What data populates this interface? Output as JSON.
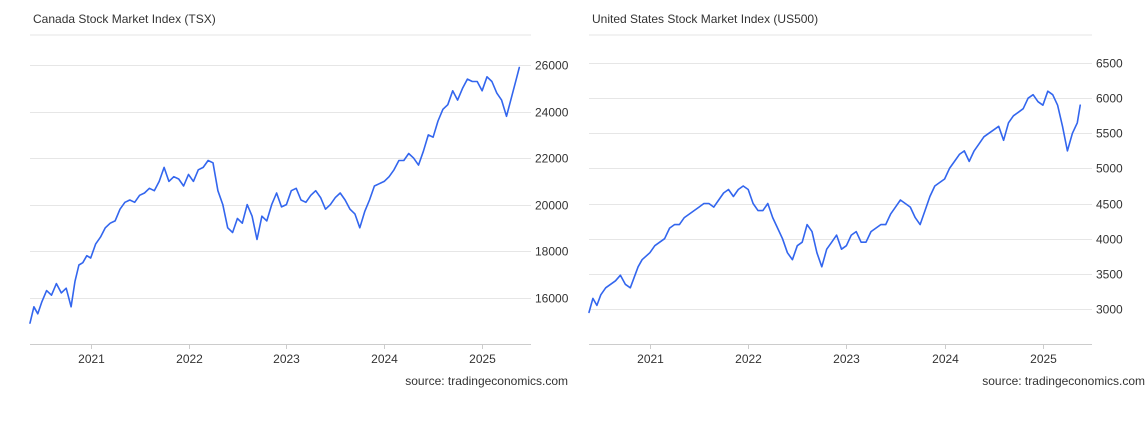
{
  "chart_data": [
    {
      "type": "line",
      "title": "Canada Stock Market Index (TSX)",
      "source": "source: tradingeconomics.com",
      "color": "#3366ee",
      "xlabel": "",
      "ylabel": "",
      "x_ticks": [
        "2021",
        "2022",
        "2023",
        "2024",
        "2025"
      ],
      "y_ticks": [
        "16000",
        "18000",
        "20000",
        "22000",
        "24000",
        "26000"
      ],
      "y_tick_values": [
        16000,
        18000,
        20000,
        22000,
        24000,
        26000
      ],
      "xlim": [
        2020.38,
        2025.5
      ],
      "ylim": [
        14000,
        27300
      ],
      "grid": "horizontal",
      "series": [
        {
          "x": [
            2020.38,
            2020.42,
            2020.46,
            2020.5,
            2020.55,
            2020.6,
            2020.65,
            2020.7,
            2020.75,
            2020.8,
            2020.84,
            2020.88,
            2020.92,
            2020.96,
            2021.0,
            2021.05,
            2021.1,
            2021.15,
            2021.2,
            2021.25,
            2021.3,
            2021.35,
            2021.4,
            2021.45,
            2021.5,
            2021.55,
            2021.6,
            2021.65,
            2021.7,
            2021.75,
            2021.8,
            2021.85,
            2021.9,
            2021.95,
            2022.0,
            2022.05,
            2022.1,
            2022.15,
            2022.2,
            2022.25,
            2022.3,
            2022.35,
            2022.4,
            2022.45,
            2022.5,
            2022.55,
            2022.6,
            2022.65,
            2022.7,
            2022.75,
            2022.8,
            2022.85,
            2022.9,
            2022.95,
            2023.0,
            2023.05,
            2023.1,
            2023.15,
            2023.2,
            2023.25,
            2023.3,
            2023.35,
            2023.4,
            2023.45,
            2023.5,
            2023.55,
            2023.6,
            2023.65,
            2023.7,
            2023.75,
            2023.8,
            2023.85,
            2023.9,
            2023.95,
            2024.0,
            2024.05,
            2024.1,
            2024.15,
            2024.2,
            2024.25,
            2024.3,
            2024.35,
            2024.4,
            2024.45,
            2024.5,
            2024.55,
            2024.6,
            2024.65,
            2024.7,
            2024.75,
            2024.8,
            2024.85,
            2024.9,
            2024.95,
            2025.0,
            2025.05,
            2025.1,
            2025.15,
            2025.2,
            2025.25,
            2025.3,
            2025.35,
            2025.38
          ],
          "y": [
            14900,
            15600,
            15300,
            15800,
            16300,
            16100,
            16600,
            16200,
            16400,
            15600,
            16700,
            17400,
            17500,
            17800,
            17700,
            18300,
            18600,
            19000,
            19200,
            19300,
            19800,
            20100,
            20200,
            20100,
            20400,
            20500,
            20700,
            20600,
            21000,
            21600,
            21000,
            21200,
            21100,
            20800,
            21300,
            21000,
            21500,
            21600,
            21900,
            21800,
            20600,
            20000,
            19000,
            18800,
            19400,
            19200,
            20000,
            19500,
            18500,
            19500,
            19300,
            20000,
            20500,
            19900,
            20000,
            20600,
            20700,
            20200,
            20100,
            20400,
            20600,
            20300,
            19800,
            20000,
            20300,
            20500,
            20200,
            19800,
            19600,
            19000,
            19700,
            20200,
            20800,
            20900,
            21000,
            21200,
            21500,
            21900,
            21900,
            22200,
            22000,
            21700,
            22300,
            23000,
            22900,
            23600,
            24100,
            24300,
            24900,
            24500,
            25000,
            25400,
            25300,
            25300,
            24900,
            25500,
            25300,
            24800,
            24500,
            23800,
            24600,
            25400,
            25900
          ]
        }
      ]
    },
    {
      "type": "line",
      "title": "United States Stock Market Index (US500)",
      "source": "source: tradingeconomics.com",
      "color": "#3366ee",
      "xlabel": "",
      "ylabel": "",
      "x_ticks": [
        "2021",
        "2022",
        "2023",
        "2024",
        "2025"
      ],
      "y_ticks": [
        "3000",
        "3500",
        "4000",
        "4500",
        "5000",
        "5500",
        "6000",
        "6500"
      ],
      "y_tick_values": [
        3000,
        3500,
        4000,
        4500,
        5000,
        5500,
        6000,
        6500
      ],
      "xlim": [
        2020.38,
        2025.5
      ],
      "ylim": [
        2500,
        6900
      ],
      "grid": "horizontal",
      "series": [
        {
          "x": [
            2020.38,
            2020.42,
            2020.46,
            2020.5,
            2020.55,
            2020.6,
            2020.65,
            2020.7,
            2020.75,
            2020.8,
            2020.84,
            2020.88,
            2020.92,
            2020.96,
            2021.0,
            2021.05,
            2021.1,
            2021.15,
            2021.2,
            2021.25,
            2021.3,
            2021.35,
            2021.4,
            2021.45,
            2021.5,
            2021.55,
            2021.6,
            2021.65,
            2021.7,
            2021.75,
            2021.8,
            2021.85,
            2021.9,
            2021.95,
            2022.0,
            2022.05,
            2022.1,
            2022.15,
            2022.2,
            2022.25,
            2022.3,
            2022.35,
            2022.4,
            2022.45,
            2022.5,
            2022.55,
            2022.6,
            2022.65,
            2022.7,
            2022.75,
            2022.8,
            2022.85,
            2022.9,
            2022.95,
            2023.0,
            2023.05,
            2023.1,
            2023.15,
            2023.2,
            2023.25,
            2023.3,
            2023.35,
            2023.4,
            2023.45,
            2023.5,
            2023.55,
            2023.6,
            2023.65,
            2023.7,
            2023.75,
            2023.8,
            2023.85,
            2023.9,
            2023.95,
            2024.0,
            2024.05,
            2024.1,
            2024.15,
            2024.2,
            2024.25,
            2024.3,
            2024.35,
            2024.4,
            2024.45,
            2024.5,
            2024.55,
            2024.6,
            2024.65,
            2024.7,
            2024.75,
            2024.8,
            2024.85,
            2024.9,
            2024.95,
            2025.0,
            2025.05,
            2025.1,
            2025.15,
            2025.2,
            2025.25,
            2025.3,
            2025.35,
            2025.38
          ],
          "y": [
            2950,
            3150,
            3050,
            3200,
            3300,
            3350,
            3400,
            3480,
            3350,
            3300,
            3450,
            3600,
            3700,
            3750,
            3800,
            3900,
            3950,
            4000,
            4150,
            4200,
            4200,
            4300,
            4350,
            4400,
            4450,
            4500,
            4500,
            4450,
            4550,
            4650,
            4700,
            4600,
            4700,
            4750,
            4700,
            4500,
            4400,
            4400,
            4500,
            4300,
            4150,
            4000,
            3800,
            3700,
            3900,
            3950,
            4200,
            4100,
            3800,
            3600,
            3850,
            3950,
            4050,
            3850,
            3900,
            4050,
            4100,
            3950,
            3950,
            4100,
            4150,
            4200,
            4200,
            4350,
            4450,
            4550,
            4500,
            4450,
            4300,
            4200,
            4400,
            4600,
            4750,
            4800,
            4850,
            5000,
            5100,
            5200,
            5250,
            5100,
            5250,
            5350,
            5450,
            5500,
            5550,
            5600,
            5400,
            5650,
            5750,
            5800,
            5850,
            6000,
            6050,
            5950,
            5900,
            6100,
            6050,
            5900,
            5600,
            5250,
            5500,
            5650,
            5900
          ]
        }
      ]
    }
  ]
}
